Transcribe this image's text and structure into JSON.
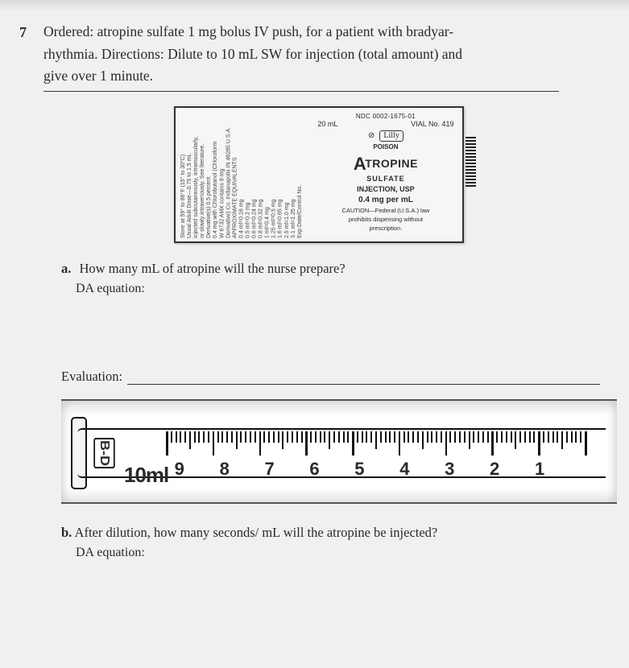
{
  "question_number": "7",
  "prompt_line1": "Ordered: atropine sulfate 1 mg bolus IV push, for a patient with bradyar-",
  "prompt_line2": "rhythmia. Directions: Dilute to 10 mL SW for injection (total amount) and",
  "prompt_line3": "give over 1 minute.",
  "label": {
    "ndc": "NDC 0002-1675-01",
    "size": "20 mL",
    "vial": "VIAL No. 419",
    "poison": "POISON",
    "brand": "Lilly",
    "drug_prefix": "A",
    "drug_rest": "TROPINE",
    "sulfate": "SULFATE",
    "injection": "INJECTION, USP",
    "strength": "0.4 mg per mL",
    "caution1": "CAUTION—Federal (U.S.A.) law",
    "caution2": "prohibits dispensing without",
    "caution3": "prescription.",
    "left_text": "Store at 59° to 86°F (15° to 30°C)\nUsual Adult Dose—0.75 to 1.5 mL\ninjected subcutaneously, intramuscularly,\nor slowly intravenously. See literature.\nDerivative(s) 0.5 percent\n0.4 mg with Chlorobutanol (Chloroform\nW 6732 AMX contains 8 mg\nDerivative) Co. Indianapolis IN 46285 U.S.A.\nAPPROXIMATE EQUIVALENTS\n0.4 ml=0.16 mg\n0.5 ml=0.2 mg\n0.6 ml=0.24 mg\n0.8 ml=0.32 mg\n1 ml=0.4 mg\n1.25 ml=0.5 mg\n1.6 ml=0.65 mg\n2.5 ml=1.0 mg\n3.1 ml=1.25 mg\nExp Date/Control No."
  },
  "part_a": {
    "letter": "a.",
    "text": "How many mL of atropine will the nurse prepare?",
    "da": "DA equation:"
  },
  "evaluation_label": "Evaluation:",
  "syringe": {
    "brand": "B-D",
    "capacity": "10ml",
    "ticks_major": [
      1,
      2,
      3,
      4,
      5,
      6,
      7,
      8,
      9
    ],
    "divisions_per_ml": 10
  },
  "part_b": {
    "letter": "b.",
    "text": "After dilution, how many seconds/ mL will the atropine be injected?",
    "da": "DA equation:"
  },
  "colors": {
    "page_bg": "#f0f0ee",
    "ink": "#2a2a2a",
    "rule": "#3a3a3a"
  }
}
